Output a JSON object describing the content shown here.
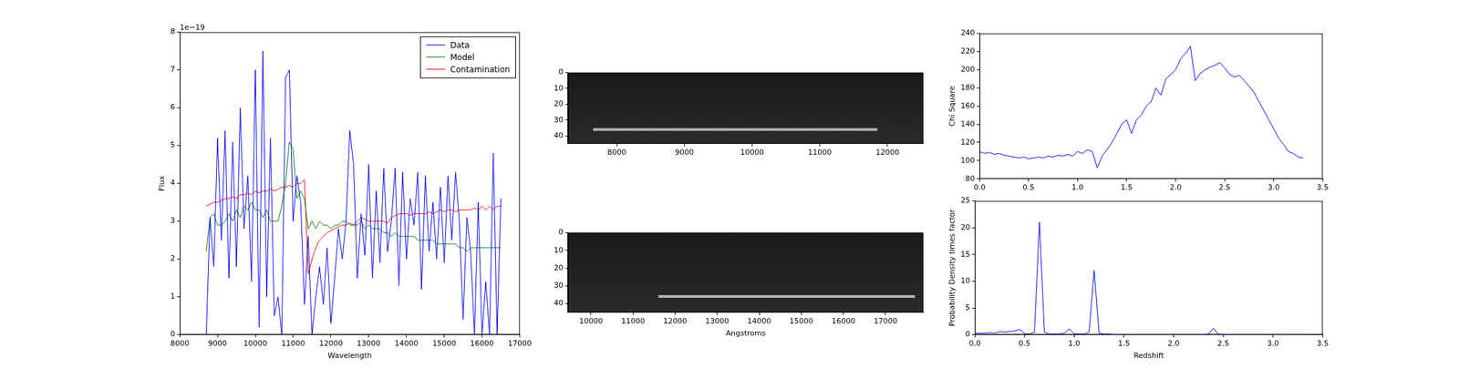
{
  "chart_data": [
    {
      "type": "line",
      "x_label": "Wavelength",
      "y_label": "Flux",
      "y_scale_label": "1e−19",
      "xlim": [
        8000,
        17000
      ],
      "xticks": [
        8000,
        9000,
        10000,
        11000,
        12000,
        13000,
        14000,
        15000,
        16000,
        17000
      ],
      "ylim": [
        0,
        8
      ],
      "yticks": [
        0,
        1,
        2,
        3,
        4,
        5,
        6,
        7,
        8
      ],
      "grid": false,
      "legend": "upper right",
      "x": [
        8700,
        8800,
        8900,
        9000,
        9100,
        9200,
        9300,
        9400,
        9500,
        9600,
        9700,
        9800,
        9900,
        10000,
        10100,
        10200,
        10300,
        10400,
        10500,
        10600,
        10700,
        10800,
        10900,
        11000,
        11100,
        11200,
        11300,
        11400,
        11500,
        11600,
        11700,
        11800,
        11900,
        12000,
        12100,
        12200,
        12300,
        12400,
        12500,
        12600,
        12700,
        12800,
        12900,
        13000,
        13100,
        13200,
        13300,
        13400,
        13500,
        13600,
        13700,
        13800,
        13900,
        14000,
        14100,
        14200,
        14300,
        14400,
        14500,
        14600,
        14700,
        14800,
        14900,
        15000,
        15100,
        15200,
        15300,
        15400,
        15500,
        15600,
        15700,
        15800,
        15900,
        16000,
        16100,
        16200,
        16300,
        16400,
        16500
      ],
      "series": [
        {
          "name": "Data",
          "color": "#0000ff",
          "values": [
            0,
            3.1,
            1.8,
            5.2,
            2.5,
            5.4,
            1.5,
            5.1,
            1.8,
            6.0,
            2.8,
            4.2,
            1.4,
            7.0,
            0.2,
            7.5,
            1.0,
            5.2,
            0.5,
            1.0,
            0,
            6.8,
            7.0,
            3.0,
            4.2,
            3.5,
            0.8,
            2.6,
            0,
            1.0,
            1.8,
            0.8,
            2.3,
            0.3,
            1.5,
            2.8,
            2.0,
            3.0,
            5.4,
            4.5,
            1.5,
            3.2,
            2.1,
            4.5,
            1.5,
            3.8,
            1.9,
            4.4,
            2.2,
            3.0,
            4.4,
            1.3,
            4.3,
            2.0,
            3.6,
            2.9,
            4.3,
            1.2,
            4.2,
            2.2,
            3.5,
            2.0,
            3.9,
            1.9,
            4.2,
            2.5,
            4.3,
            3.0,
            0.4,
            3.1,
            2.2,
            0,
            3.5,
            0,
            1.4,
            0,
            4.8,
            0,
            3.6
          ]
        },
        {
          "name": "Model",
          "color": "#008000",
          "values": [
            2.2,
            3.1,
            3.2,
            2.9,
            2.9,
            3.0,
            3.2,
            3.0,
            3.3,
            3.1,
            3.4,
            3.3,
            3.5,
            3.3,
            3.3,
            3.1,
            3.3,
            3.0,
            3.0,
            3.0,
            3.4,
            4.0,
            5.1,
            4.9,
            3.6,
            3.8,
            3.6,
            2.8,
            3.0,
            2.8,
            3.0,
            2.9,
            2.9,
            2.8,
            2.9,
            2.9,
            3.0,
            3.0,
            2.9,
            2.9,
            2.9,
            3.0,
            2.8,
            2.9,
            2.8,
            2.8,
            2.8,
            2.7,
            2.7,
            2.6,
            2.7,
            2.6,
            2.6,
            2.6,
            2.6,
            2.6,
            2.5,
            2.5,
            2.5,
            2.5,
            2.5,
            2.4,
            2.4,
            2.4,
            2.4,
            2.4,
            2.4,
            2.3,
            2.3,
            2.2,
            2.3,
            2.3,
            2.3,
            2.3,
            2.3,
            2.3,
            2.3,
            2.3,
            2.3
          ]
        },
        {
          "name": "Contamination",
          "color": "#ff0000",
          "values": [
            3.4,
            3.45,
            3.5,
            3.5,
            3.55,
            3.6,
            3.6,
            3.65,
            3.6,
            3.7,
            3.7,
            3.75,
            3.7,
            3.8,
            3.75,
            3.8,
            3.8,
            3.85,
            3.8,
            3.85,
            3.9,
            3.9,
            3.95,
            3.9,
            4.0,
            4.0,
            4.1,
            1.6,
            2.0,
            2.3,
            2.5,
            2.6,
            2.7,
            2.75,
            2.8,
            2.85,
            2.9,
            2.9,
            2.95,
            2.9,
            3.0,
            3.1,
            3.05,
            3.0,
            3.0,
            3.0,
            3.0,
            3.0,
            2.95,
            3.1,
            3.15,
            3.2,
            3.2,
            3.2,
            3.15,
            3.2,
            3.2,
            3.2,
            3.2,
            3.25,
            3.2,
            3.25,
            3.3,
            3.25,
            3.3,
            3.3,
            3.25,
            3.3,
            3.3,
            3.3,
            3.3,
            3.35,
            3.3,
            3.4,
            3.3,
            3.4,
            3.3,
            3.4,
            3.4
          ]
        }
      ]
    },
    {
      "type": "image",
      "xlim": [
        7280,
        12530
      ],
      "xticks": [
        8000,
        9000,
        10000,
        11000,
        12000
      ],
      "ylim": [
        0,
        45
      ],
      "yticks": [
        0,
        10,
        20,
        30,
        40
      ],
      "grid": false,
      "traces": [
        {
          "x": [
            7650,
            11850
          ],
          "y": [
            36,
            36
          ]
        }
      ]
    },
    {
      "type": "image",
      "x_label": "Angstroms",
      "xlim": [
        9456,
        17900
      ],
      "xticks": [
        10000,
        11000,
        12000,
        13000,
        14000,
        15000,
        16000,
        17000
      ],
      "ylim": [
        0,
        45
      ],
      "yticks": [
        0,
        10,
        20,
        30,
        40
      ],
      "grid": false,
      "traces": [
        {
          "x": [
            11600,
            17700
          ],
          "y": [
            36,
            36
          ]
        }
      ]
    },
    {
      "type": "line",
      "y_label": "Chi Square",
      "xlim": [
        0,
        3.5
      ],
      "xticks": [
        {
          "value": 0,
          "label": "0.0"
        },
        0.5,
        {
          "value": 1,
          "label": "1.0"
        },
        1.5,
        {
          "value": 2,
          "label": "2.0"
        },
        2.5,
        {
          "value": 3,
          "label": "3.0"
        },
        3.5
      ],
      "ylim": [
        80,
        240
      ],
      "yticks": [
        80,
        100,
        120,
        140,
        160,
        180,
        200,
        220,
        240
      ],
      "grid": false,
      "x": [
        0,
        0.05,
        0.1,
        0.15,
        0.2,
        0.25,
        0.3,
        0.35,
        0.4,
        0.45,
        0.5,
        0.55,
        0.6,
        0.65,
        0.7,
        0.75,
        0.8,
        0.85,
        0.9,
        0.95,
        1.0,
        1.05,
        1.1,
        1.15,
        1.2,
        1.25,
        1.3,
        1.35,
        1.4,
        1.45,
        1.5,
        1.55,
        1.6,
        1.65,
        1.7,
        1.75,
        1.8,
        1.85,
        1.9,
        1.95,
        2.0,
        2.05,
        2.1,
        2.15,
        2.2,
        2.25,
        2.3,
        2.35,
        2.4,
        2.45,
        2.5,
        2.55,
        2.6,
        2.65,
        2.7,
        2.75,
        2.8,
        2.85,
        2.9,
        2.95,
        3.0,
        3.05,
        3.1,
        3.15,
        3.2,
        3.25,
        3.3
      ],
      "series": [
        {
          "color": "#0000ff",
          "values": [
            110,
            108,
            109,
            107,
            108,
            106,
            105,
            104,
            103,
            104,
            102,
            103,
            104,
            103,
            105,
            104,
            106,
            105,
            107,
            105,
            110,
            108,
            112,
            110,
            92,
            105,
            112,
            120,
            130,
            140,
            145,
            130,
            145,
            150,
            160,
            165,
            180,
            172,
            190,
            195,
            200,
            212,
            218,
            226,
            188,
            196,
            200,
            203,
            205,
            208,
            202,
            195,
            192,
            194,
            188,
            182,
            175,
            165,
            155,
            145,
            135,
            125,
            118,
            110,
            108,
            104,
            103
          ]
        }
      ]
    },
    {
      "type": "line",
      "x_label": "Redshift",
      "y_label": "Probability Density times factor",
      "xlim": [
        0,
        3.5
      ],
      "xticks": [
        {
          "value": 0,
          "label": "0.0"
        },
        0.5,
        {
          "value": 1,
          "label": "1.0"
        },
        1.5,
        {
          "value": 2,
          "label": "2.0"
        },
        2.5,
        {
          "value": 3,
          "label": "3.0"
        },
        3.5
      ],
      "ylim": [
        0,
        25
      ],
      "yticks": [
        0,
        5,
        10,
        15,
        20,
        25
      ],
      "grid": false,
      "x": [
        0,
        0.05,
        0.1,
        0.15,
        0.2,
        0.25,
        0.3,
        0.35,
        0.4,
        0.45,
        0.5,
        0.55,
        0.6,
        0.65,
        0.7,
        0.75,
        0.8,
        0.85,
        0.9,
        0.95,
        1.0,
        1.05,
        1.1,
        1.15,
        1.2,
        1.25,
        1.3,
        1.35,
        1.4,
        1.45,
        1.5,
        1.55,
        1.6,
        1.65,
        1.7,
        1.75,
        1.8,
        1.85,
        1.9,
        1.95,
        2.0,
        2.05,
        2.1,
        2.15,
        2.2,
        2.25,
        2.3,
        2.35,
        2.4,
        2.45,
        2.5,
        2.55,
        2.6,
        2.65,
        2.7,
        2.75,
        2.8,
        2.85,
        2.9,
        2.95,
        3.0,
        3.05,
        3.1,
        3.15,
        3.2,
        3.25,
        3.3
      ],
      "series": [
        {
          "color": "#0000ff",
          "values": [
            0.2,
            0.3,
            0.3,
            0.4,
            0.3,
            0.6,
            0.5,
            0.6,
            0.7,
            1.0,
            0.2,
            0.1,
            0.5,
            21,
            0.5,
            0.1,
            0.1,
            0.1,
            0.3,
            1.1,
            0.2,
            0.1,
            0.1,
            0.5,
            12,
            0.3,
            0.1,
            0.1,
            0,
            0,
            0,
            0,
            0,
            0,
            0,
            0,
            0,
            0,
            0,
            0,
            0,
            0,
            0,
            0,
            0,
            0,
            0,
            0.1,
            1.2,
            0.1,
            0,
            0,
            0,
            0,
            0,
            0,
            0,
            0,
            0,
            0,
            0,
            0,
            0,
            0,
            0,
            0,
            0
          ]
        }
      ]
    }
  ]
}
